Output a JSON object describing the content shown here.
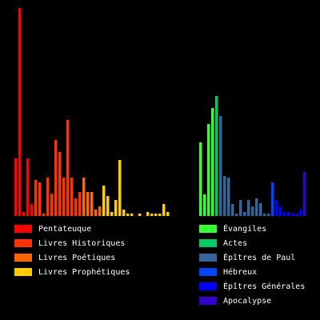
{
  "chart_data": [
    {
      "type": "bar",
      "series": [
        {
          "name": "Pentateuque",
          "color": "#ff0000",
          "values": [
            72,
            260,
            5,
            72,
            15
          ]
        },
        {
          "name": "Livres Historiques",
          "color": "#ff3300",
          "values": [
            45,
            42,
            3,
            48,
            28,
            95,
            80,
            48,
            120,
            48,
            22,
            30
          ]
        },
        {
          "name": "Livres Poétiques",
          "color": "#ff6600",
          "values": [
            48,
            30,
            30,
            8,
            12
          ]
        },
        {
          "name": "Livres Prophétiques",
          "color": "#ffcc00",
          "values": [
            38,
            25,
            5,
            20,
            70,
            8,
            3,
            3,
            0,
            3,
            0,
            5,
            3,
            3,
            3,
            15,
            5
          ]
        }
      ]
    },
    {
      "type": "bar",
      "series": [
        {
          "name": "Évangiles",
          "color": "#33ff33",
          "values": [
            92,
            27,
            115,
            135
          ]
        },
        {
          "name": "Actes",
          "color": "#00cc66",
          "values": [
            150
          ]
        },
        {
          "name": "Épîtres de Paul",
          "color": "#336699",
          "values": [
            125,
            50,
            48,
            15,
            3,
            20,
            5,
            20,
            12,
            22,
            16,
            3,
            3
          ]
        },
        {
          "name": "Hébreux",
          "color": "#0044ff",
          "values": [
            42
          ]
        },
        {
          "name": "Épîtres Générales",
          "color": "#0000ff",
          "values": [
            20,
            12,
            5,
            5,
            3,
            3,
            8
          ]
        },
        {
          "name": "Apocalypse",
          "color": "#3300cc",
          "values": [
            55
          ]
        }
      ]
    }
  ]
}
